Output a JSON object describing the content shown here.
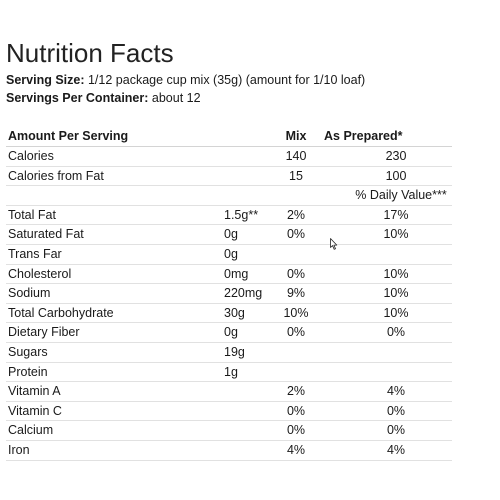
{
  "title": "Nutrition Facts",
  "serving_size": {
    "label": "Serving Size:",
    "value": "1/12 package cup mix (35g) (amount for 1/10 loaf)"
  },
  "servings_per_container": {
    "label": "Servings Per Container:",
    "value": "about 12"
  },
  "table": {
    "headers": {
      "amount_per_serving": "Amount Per Serving",
      "mix": "Mix",
      "as_prepared": "As Prepared*"
    },
    "top_rows": [
      {
        "label": "Calories",
        "mix": "140",
        "prepared": "230"
      },
      {
        "label": "Calories from Fat",
        "mix": "15",
        "prepared": "100"
      }
    ],
    "daily_value_header": "% Daily Value***",
    "rows": [
      {
        "label": "Total Fat",
        "amount": "1.5g**",
        "mix": "2%",
        "prepared": "17%"
      },
      {
        "label": "Saturated Fat",
        "amount": "0g",
        "mix": "0%",
        "prepared": "10%"
      },
      {
        "label": "Trans Far",
        "amount": "0g",
        "mix": "",
        "prepared": ""
      },
      {
        "label": "Cholesterol",
        "amount": "0mg",
        "mix": "0%",
        "prepared": "10%"
      },
      {
        "label": "Sodium",
        "amount": "220mg",
        "mix": "9%",
        "prepared": "10%"
      },
      {
        "label": "Total Carbohydrate",
        "amount": "30g",
        "mix": "10%",
        "prepared": "10%"
      },
      {
        "label": "Dietary Fiber",
        "amount": "0g",
        "mix": "0%",
        "prepared": "0%"
      },
      {
        "label": "Sugars",
        "amount": "19g",
        "mix": "",
        "prepared": ""
      },
      {
        "label": "Protein",
        "amount": "1g",
        "mix": "",
        "prepared": ""
      },
      {
        "label": "Vitamin A",
        "amount": "",
        "mix": "2%",
        "prepared": "4%"
      },
      {
        "label": "Vitamin C",
        "amount": "",
        "mix": "0%",
        "prepared": "0%"
      },
      {
        "label": "Calcium",
        "amount": "",
        "mix": "0%",
        "prepared": "0%"
      },
      {
        "label": "Iron",
        "amount": "",
        "mix": "4%",
        "prepared": "4%"
      }
    ]
  },
  "icons": {
    "cursor": "mouse-pointer-icon"
  },
  "colors": {
    "text": "#1a1a1a",
    "row_border": "#e1e1e1",
    "background": "#ffffff"
  }
}
